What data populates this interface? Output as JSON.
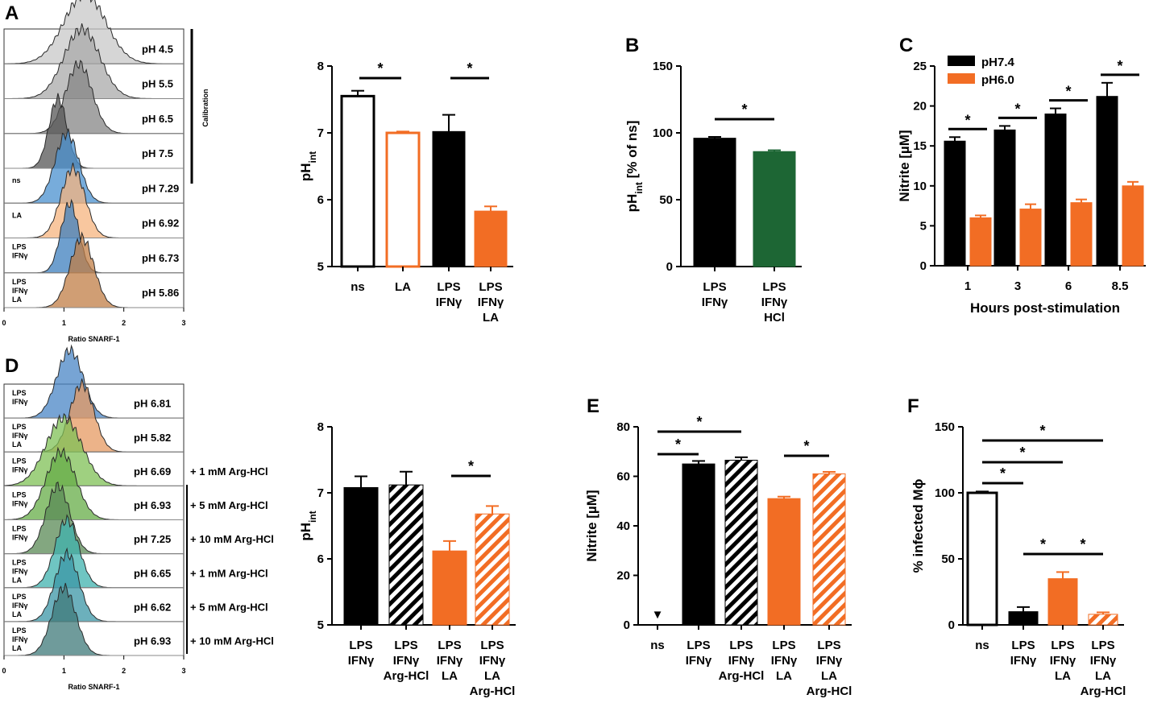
{
  "panel_letters": [
    "A",
    "B",
    "C",
    "D",
    "E",
    "F"
  ],
  "colors": {
    "black": "#000000",
    "orange": "#f26d24",
    "green": "#1d6634",
    "white": "#ffffff"
  },
  "chart_data": [
    {
      "panel": "A-hist",
      "type": "histogram",
      "xlabel": "Ratio SNARF-1",
      "x_ticks": [
        "0",
        "1",
        "2",
        "3"
      ],
      "xlim": [
        0,
        3
      ],
      "side_label": "Calibration",
      "rows": [
        {
          "name": "",
          "ph": "pH 4.5",
          "color": "#c8c8c8",
          "peak": 1.35,
          "width": 0.35
        },
        {
          "name": "",
          "ph": "pH 5.5",
          "color": "#a9a9a9",
          "peak": 1.3,
          "width": 0.3
        },
        {
          "name": "",
          "ph": "pH 6.5",
          "color": "#858585",
          "peak": 1.25,
          "width": 0.22
        },
        {
          "name": "",
          "ph": "pH 7.5",
          "color": "#555555",
          "peak": 0.9,
          "width": 0.15
        },
        {
          "name": "ns",
          "ph": "pH 7.29",
          "color": "#4a90cf",
          "peak": 1.05,
          "width": 0.2
        },
        {
          "name": "LA",
          "ph": "pH 6.92",
          "color": "#f5b47f",
          "peak": 1.15,
          "width": 0.2
        },
        {
          "name": "LPS\nIFNγ",
          "ph": "pH 6.73",
          "color": "#3d7fbd",
          "peak": 1.1,
          "width": 0.15
        },
        {
          "name": "LPS\nIFNγ\nLA",
          "ph": "pH 5.86",
          "color": "#c07d45",
          "peak": 1.3,
          "width": 0.2
        }
      ]
    },
    {
      "panel": "A-bar",
      "type": "bar",
      "ylabel": "pHint",
      "ylabel_main": "pH",
      "ylabel_sub": "int",
      "ylim": [
        5,
        8
      ],
      "yticks": [
        "5",
        "6",
        "7",
        "8"
      ],
      "categories": [
        "ns",
        "LA",
        "LPS\nIFNγ",
        "LPS\nIFNγ\nLA"
      ],
      "values": [
        7.55,
        7.0,
        7.02,
        5.83
      ],
      "errors": [
        0.08,
        0.02,
        0.25,
        0.07
      ],
      "styles": [
        "open-black",
        "open-orange",
        "black",
        "orange"
      ],
      "significance": [
        {
          "from": 0,
          "to": 1,
          "label": "*"
        },
        {
          "from": 2,
          "to": 3,
          "label": "*"
        }
      ]
    },
    {
      "panel": "B",
      "type": "bar",
      "ylabel": "pHint [% of ns]",
      "ylabel_main": "pH",
      "ylabel_sub": "int",
      "ylabel_rest": " [% of ns]",
      "ylim": [
        0,
        150
      ],
      "yticks": [
        "0",
        "50",
        "100",
        "150"
      ],
      "categories": [
        "LPS\nIFNγ",
        "LPS\nIFNγ\nHCl"
      ],
      "values": [
        96,
        86
      ],
      "errors": [
        1,
        1
      ],
      "styles": [
        "black",
        "green"
      ],
      "significance": [
        {
          "from": 0,
          "to": 1,
          "label": "*"
        }
      ]
    },
    {
      "panel": "C",
      "type": "grouped-bar",
      "ylabel": "Nitrite [µM]",
      "xlabel": "Hours post-stimulation",
      "ylim": [
        0,
        25
      ],
      "yticks": [
        "0",
        "5",
        "10",
        "15",
        "20",
        "25"
      ],
      "categories": [
        "1",
        "3",
        "6",
        "8.5"
      ],
      "series": [
        {
          "name": "pH7.4",
          "values": [
            15.6,
            17,
            19,
            21.2
          ],
          "errors": [
            0.5,
            0.5,
            0.7,
            1.7
          ],
          "style": "black"
        },
        {
          "name": "pH6.0",
          "values": [
            6,
            7.1,
            7.9,
            10
          ],
          "errors": [
            0.3,
            0.6,
            0.4,
            0.5
          ],
          "style": "orange"
        }
      ],
      "significance_label": "*"
    },
    {
      "panel": "D-hist",
      "type": "histogram",
      "xlabel": "Ratio SNARF-1",
      "x_ticks": [
        "0",
        "1",
        "2",
        "3"
      ],
      "xlim": [
        0,
        3
      ],
      "rows": [
        {
          "name": "LPS\nIFNγ",
          "ph": "pH 6.81",
          "color": "#4a86c5",
          "peak": 1.1,
          "width": 0.22,
          "treatment": ""
        },
        {
          "name": "LPS\nIFNγ\nLA",
          "ph": "pH 5.82",
          "color": "#e59a62",
          "peak": 1.3,
          "width": 0.2,
          "treatment": ""
        },
        {
          "name": "LPS\nIFNγ",
          "ph": "pH 6.69",
          "color": "#7fc056",
          "peak": 1.0,
          "width": 0.3,
          "treatment": "+ 1 mM Arg-HCl"
        },
        {
          "name": "LPS\nIFNγ",
          "ph": "pH 6.93",
          "color": "#66ac47",
          "peak": 0.95,
          "width": 0.25,
          "treatment": "+ 5 mM Arg-HCl"
        },
        {
          "name": "LPS\nIFNγ",
          "ph": "pH 7.25",
          "color": "#5a8a55",
          "peak": 0.9,
          "width": 0.2,
          "treatment": "+ 10 mM Arg-HCl"
        },
        {
          "name": "LPS\nIFNγ\nLA",
          "ph": "pH 6.65",
          "color": "#3fb1ad",
          "peak": 1.05,
          "width": 0.2,
          "treatment": "+ 1 mM Arg-HCl"
        },
        {
          "name": "LPS\nIFNγ\nLA",
          "ph": "pH 6.62",
          "color": "#3b96a5",
          "peak": 1.05,
          "width": 0.2,
          "treatment": "+ 5 mM Arg-HCl"
        },
        {
          "name": "LPS\nIFNγ\nLA",
          "ph": "pH 6.93",
          "color": "#3f7a7a",
          "peak": 1.0,
          "width": 0.2,
          "treatment": "+ 10 mM Arg-HCl"
        }
      ]
    },
    {
      "panel": "D-bar",
      "type": "bar",
      "ylabel": "pHint",
      "ylabel_main": "pH",
      "ylabel_sub": "int",
      "ylim": [
        5,
        8
      ],
      "yticks": [
        "5",
        "6",
        "7",
        "8"
      ],
      "categories": [
        "LPS\nIFNγ",
        "LPS\nIFNγ\nArg-HCl",
        "LPS\nIFNγ\nLA",
        "LPS\nIFNγ\nLA\nArg-HCl"
      ],
      "values": [
        7.08,
        7.12,
        6.12,
        6.68
      ],
      "errors": [
        0.17,
        0.2,
        0.15,
        0.12
      ],
      "styles": [
        "black",
        "hatch-black",
        "orange",
        "hatch-orange"
      ],
      "significance": [
        {
          "from": 2,
          "to": 3,
          "label": "*"
        }
      ]
    },
    {
      "panel": "E",
      "type": "bar",
      "ylabel": "Nitrite [µM]",
      "ylim": [
        0,
        80
      ],
      "yticks": [
        "0",
        "20",
        "40",
        "60",
        "80"
      ],
      "categories": [
        "ns",
        "LPS\nIFNγ",
        "LPS\nIFNγ\nArg-HCl",
        "LPS\nIFNγ\nLA",
        "LPS\nIFNγ\nLA\nArg-HCl"
      ],
      "values": [
        0,
        65,
        66.5,
        51,
        61
      ],
      "errors": [
        0,
        1.2,
        1.2,
        0.8,
        0.8
      ],
      "styles": [
        "none",
        "black",
        "hatch-black",
        "orange",
        "hatch-orange"
      ],
      "below_detection_marker": "▼",
      "significance": [
        {
          "from": 0,
          "to": 1,
          "label": "*"
        },
        {
          "from": 0,
          "to": 2,
          "label": "*"
        },
        {
          "from": 3,
          "to": 4,
          "label": "*"
        }
      ]
    },
    {
      "panel": "F",
      "type": "bar",
      "ylabel": "% infected Mϕ",
      "ylim": [
        0,
        150
      ],
      "yticks": [
        "0",
        "50",
        "100",
        "150"
      ],
      "categories": [
        "ns",
        "LPS\nIFNγ",
        "LPS\nIFNγ\nLA",
        "LPS\nIFNγ\nLA\nArg-HCl"
      ],
      "values": [
        100,
        10,
        35,
        8
      ],
      "errors": [
        1,
        3.5,
        5,
        1.5
      ],
      "styles": [
        "open-black",
        "black",
        "orange",
        "hatch-orange"
      ],
      "significance": [
        {
          "from": 0,
          "to": 1,
          "label": "*"
        },
        {
          "from": 0,
          "to": 2,
          "label": "*"
        },
        {
          "from": 0,
          "to": 3,
          "label": "*"
        },
        {
          "from": 1,
          "to": 2,
          "label": "*"
        },
        {
          "from": 2,
          "to": 3,
          "label": "*"
        }
      ]
    }
  ]
}
